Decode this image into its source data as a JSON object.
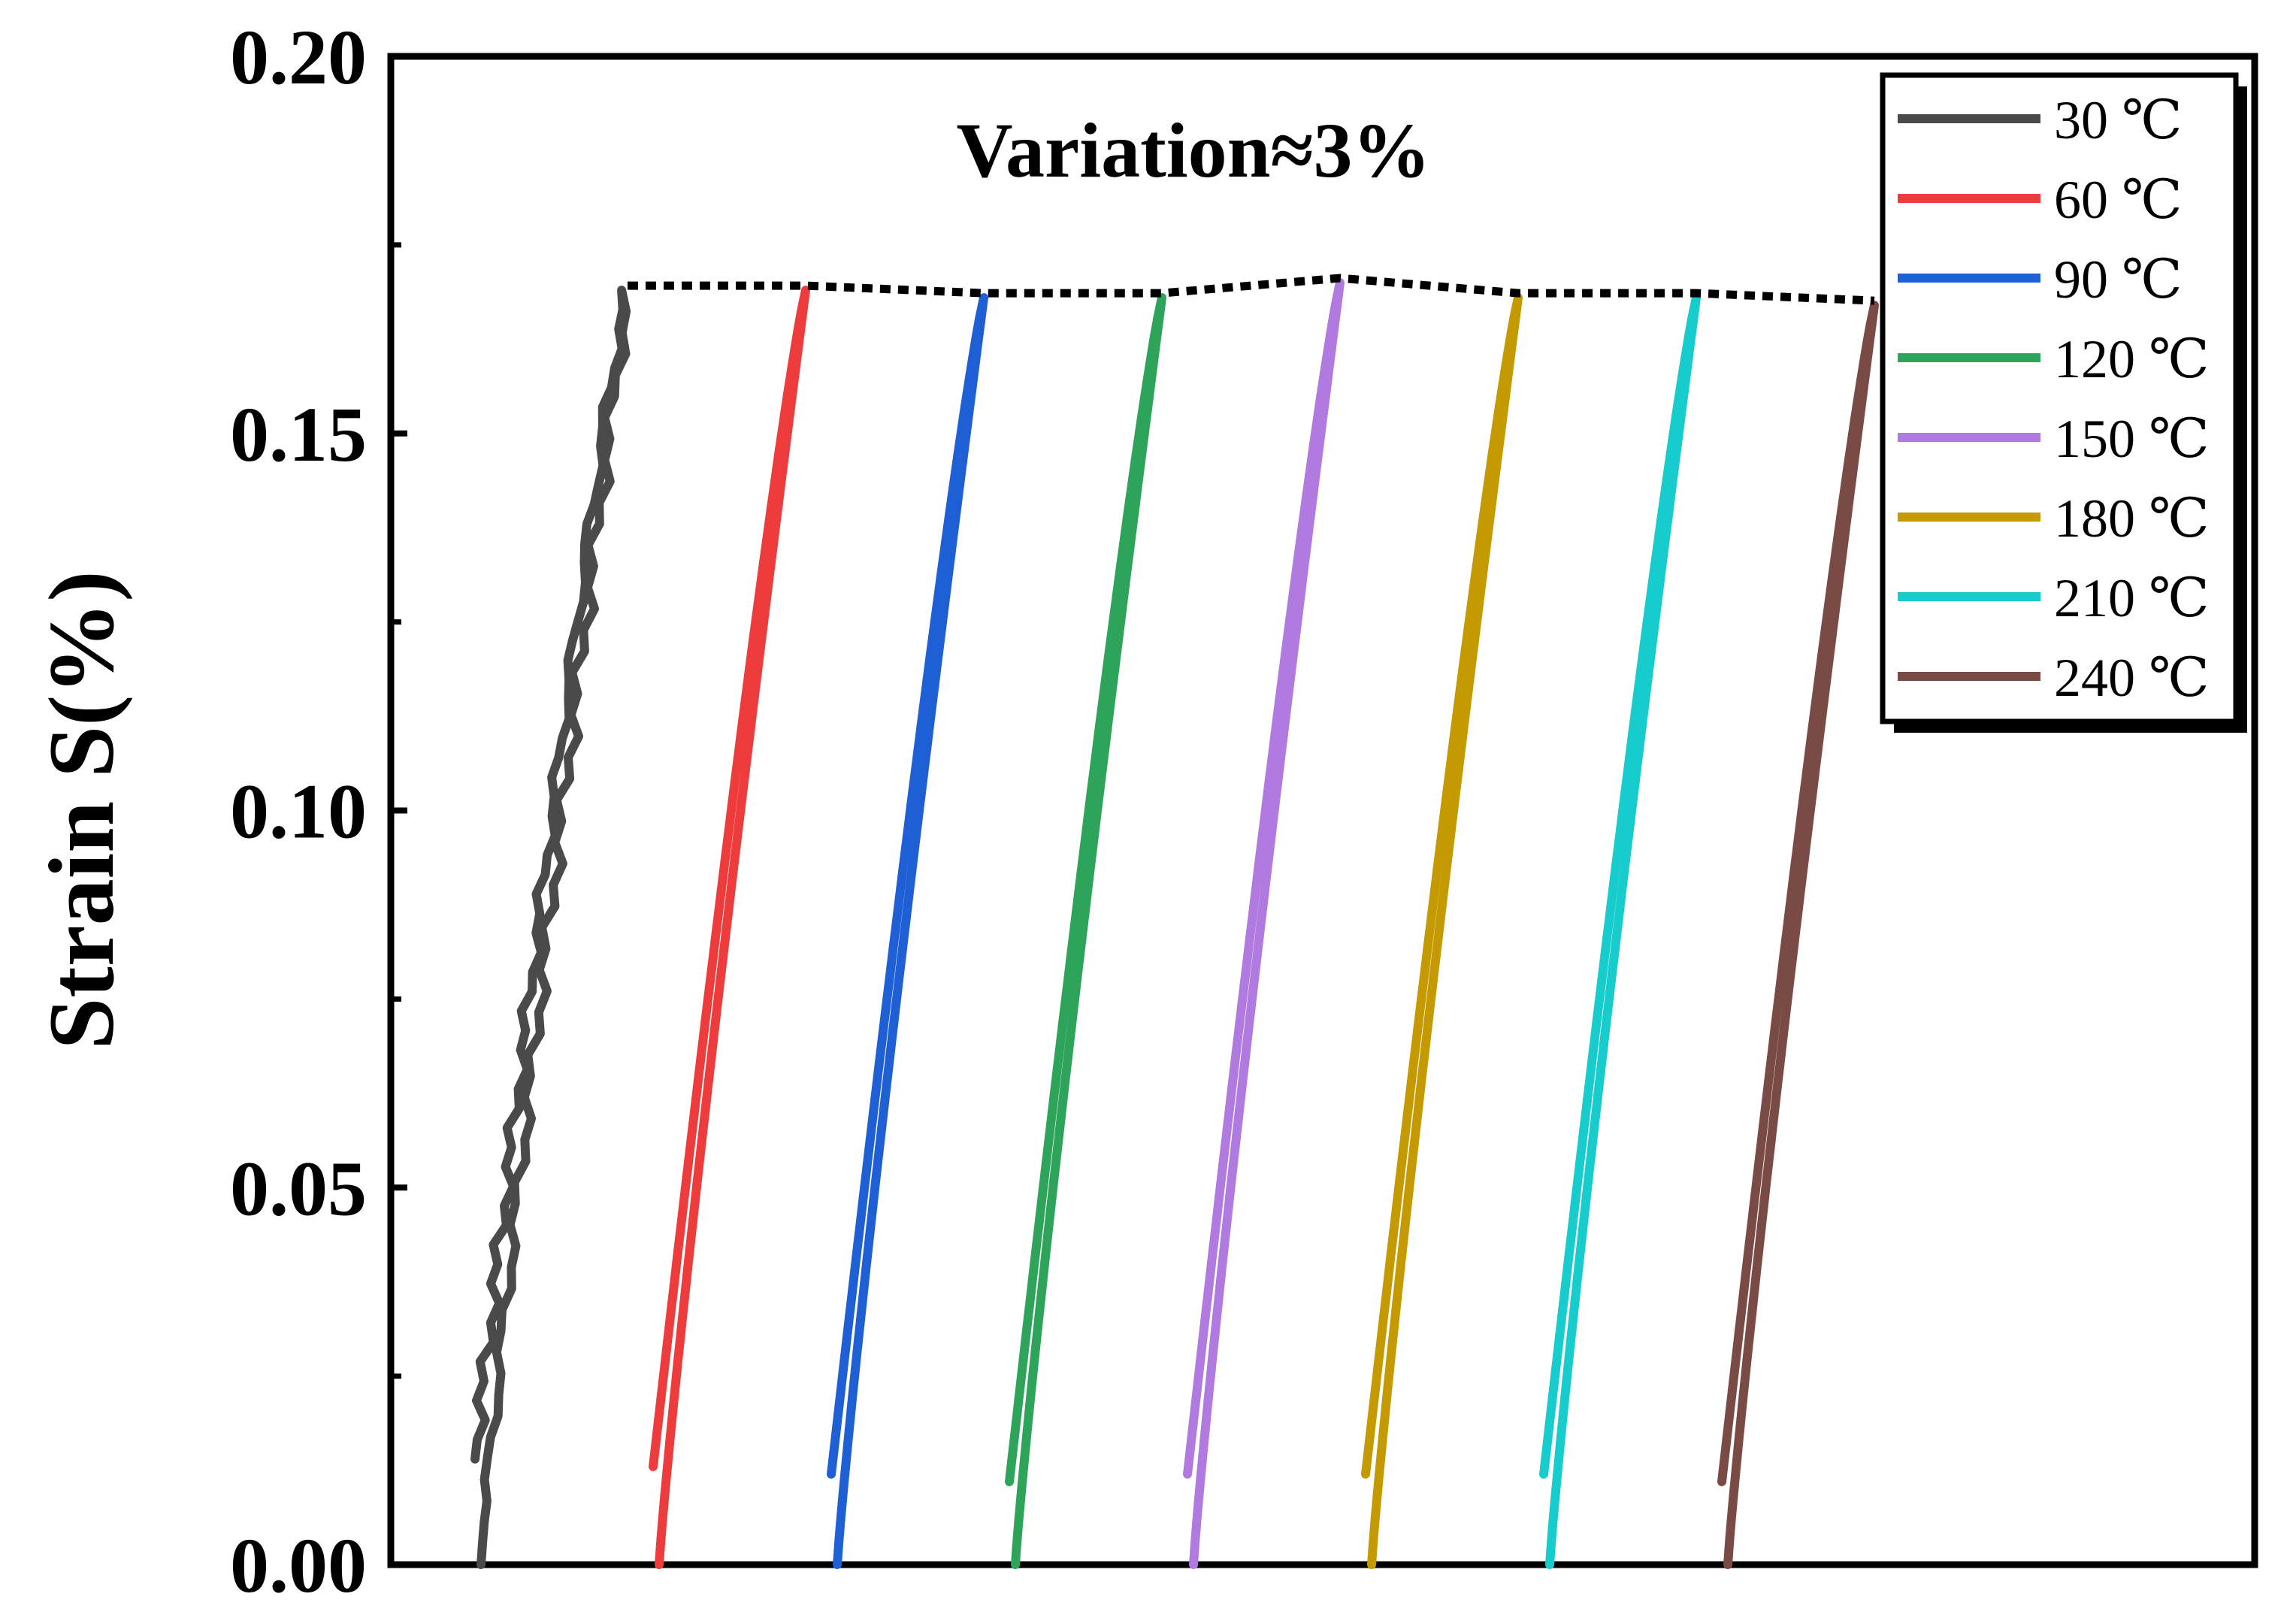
{
  "chart_data": {
    "type": "line",
    "title": "",
    "xlabel": "",
    "ylabel": "Strain S(%)",
    "ylim": [
      0,
      0.2
    ],
    "x_ticks_visible": false,
    "y_ticks": [
      "0.00",
      "0.05",
      "0.10",
      "0.15",
      "0.20"
    ],
    "y_tick_values": [
      0,
      0.05,
      0.1,
      0.15,
      0.2
    ],
    "legend_position": "top-right",
    "annotation": "Variation≈3%",
    "series": [
      {
        "name": "30 ℃",
        "color": "#4a4a4a",
        "peak_strain": 0.169,
        "residual_strain": 0.014,
        "noisy": true
      },
      {
        "name": "60 ℃",
        "color": "#ee3b3b",
        "peak_strain": 0.169,
        "residual_strain": 0.013,
        "noisy": false
      },
      {
        "name": "90 ℃",
        "color": "#1f5fd6",
        "peak_strain": 0.168,
        "residual_strain": 0.012,
        "noisy": false
      },
      {
        "name": "120 ℃",
        "color": "#2ea35a",
        "peak_strain": 0.168,
        "residual_strain": 0.011,
        "noisy": false
      },
      {
        "name": "150 ℃",
        "color": "#b07ae0",
        "peak_strain": 0.17,
        "residual_strain": 0.012,
        "noisy": false
      },
      {
        "name": "180 ℃",
        "color": "#c49a00",
        "peak_strain": 0.168,
        "residual_strain": 0.012,
        "noisy": false
      },
      {
        "name": "210 ℃",
        "color": "#17cccc",
        "peak_strain": 0.168,
        "residual_strain": 0.012,
        "noisy": false
      },
      {
        "name": "240 ℃",
        "color": "#7a4a44",
        "peak_strain": 0.167,
        "residual_strain": 0.011,
        "noisy": false
      }
    ],
    "envelope_line": {
      "style": "dotted",
      "color": "#000000",
      "follows": "peak_strain"
    }
  }
}
